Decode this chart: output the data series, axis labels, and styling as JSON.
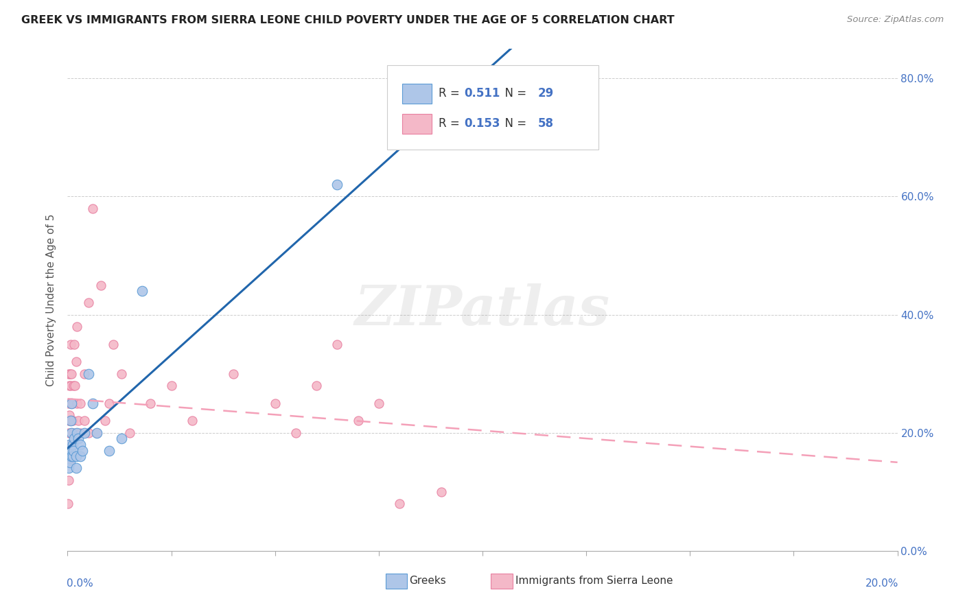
{
  "title": "GREEK VS IMMIGRANTS FROM SIERRA LEONE CHILD POVERTY UNDER THE AGE OF 5 CORRELATION CHART",
  "source": "Source: ZipAtlas.com",
  "ylabel": "Child Poverty Under the Age of 5",
  "legend_label1": "Greeks",
  "legend_label2": "Immigrants from Sierra Leone",
  "R1": "0.511",
  "N1": "29",
  "R2": "0.153",
  "N2": "58",
  "blue_scatter_color": "#aec6e8",
  "blue_edge_color": "#5b9bd5",
  "pink_scatter_color": "#f4b8c8",
  "pink_edge_color": "#e87fa0",
  "blue_line_color": "#2166ac",
  "pink_line_color": "#f4a0b8",
  "tick_color": "#4472c4",
  "watermark": "ZIPatlas",
  "greek_x": [
    0.0002,
    0.0003,
    0.0005,
    0.0006,
    0.0007,
    0.0008,
    0.0009,
    0.001,
    0.001,
    0.0012,
    0.0013,
    0.0015,
    0.0016,
    0.002,
    0.002,
    0.0022,
    0.0025,
    0.003,
    0.003,
    0.0035,
    0.004,
    0.005,
    0.006,
    0.007,
    0.01,
    0.013,
    0.018,
    0.065,
    0.1
  ],
  "greek_y": [
    0.14,
    0.16,
    0.18,
    0.15,
    0.22,
    0.17,
    0.16,
    0.2,
    0.25,
    0.18,
    0.16,
    0.17,
    0.19,
    0.14,
    0.16,
    0.2,
    0.19,
    0.16,
    0.18,
    0.17,
    0.2,
    0.3,
    0.25,
    0.2,
    0.17,
    0.19,
    0.44,
    0.62,
    0.77
  ],
  "sierra_x": [
    0.0001,
    0.0001,
    0.0002,
    0.0002,
    0.0002,
    0.0003,
    0.0003,
    0.0004,
    0.0004,
    0.0005,
    0.0005,
    0.0006,
    0.0006,
    0.0007,
    0.0007,
    0.0008,
    0.0008,
    0.0009,
    0.001,
    0.001,
    0.0012,
    0.0012,
    0.0013,
    0.0014,
    0.0015,
    0.0016,
    0.0018,
    0.002,
    0.002,
    0.0022,
    0.0023,
    0.0025,
    0.003,
    0.003,
    0.004,
    0.004,
    0.005,
    0.005,
    0.006,
    0.007,
    0.008,
    0.009,
    0.01,
    0.011,
    0.013,
    0.015,
    0.02,
    0.025,
    0.03,
    0.04,
    0.05,
    0.055,
    0.06,
    0.065,
    0.07,
    0.075,
    0.08,
    0.09
  ],
  "sierra_y": [
    0.08,
    0.15,
    0.2,
    0.25,
    0.3,
    0.12,
    0.22,
    0.18,
    0.28,
    0.15,
    0.23,
    0.18,
    0.3,
    0.2,
    0.35,
    0.22,
    0.28,
    0.25,
    0.22,
    0.3,
    0.18,
    0.25,
    0.22,
    0.28,
    0.2,
    0.35,
    0.28,
    0.2,
    0.32,
    0.25,
    0.38,
    0.22,
    0.2,
    0.25,
    0.22,
    0.3,
    0.2,
    0.42,
    0.58,
    0.2,
    0.45,
    0.22,
    0.25,
    0.35,
    0.3,
    0.2,
    0.25,
    0.28,
    0.22,
    0.3,
    0.25,
    0.2,
    0.28,
    0.35,
    0.22,
    0.25,
    0.08,
    0.1
  ],
  "xlim": [
    0.0,
    0.2
  ],
  "ylim": [
    0.0,
    0.85
  ],
  "yticks": [
    0.0,
    0.2,
    0.4,
    0.6,
    0.8
  ],
  "ytick_labels": [
    "0.0%",
    "20.0%",
    "40.0%",
    "60.0%",
    "80.0%"
  ],
  "xtick_positions": [
    0.0,
    0.025,
    0.05,
    0.075,
    0.1,
    0.125,
    0.15,
    0.175,
    0.2
  ]
}
